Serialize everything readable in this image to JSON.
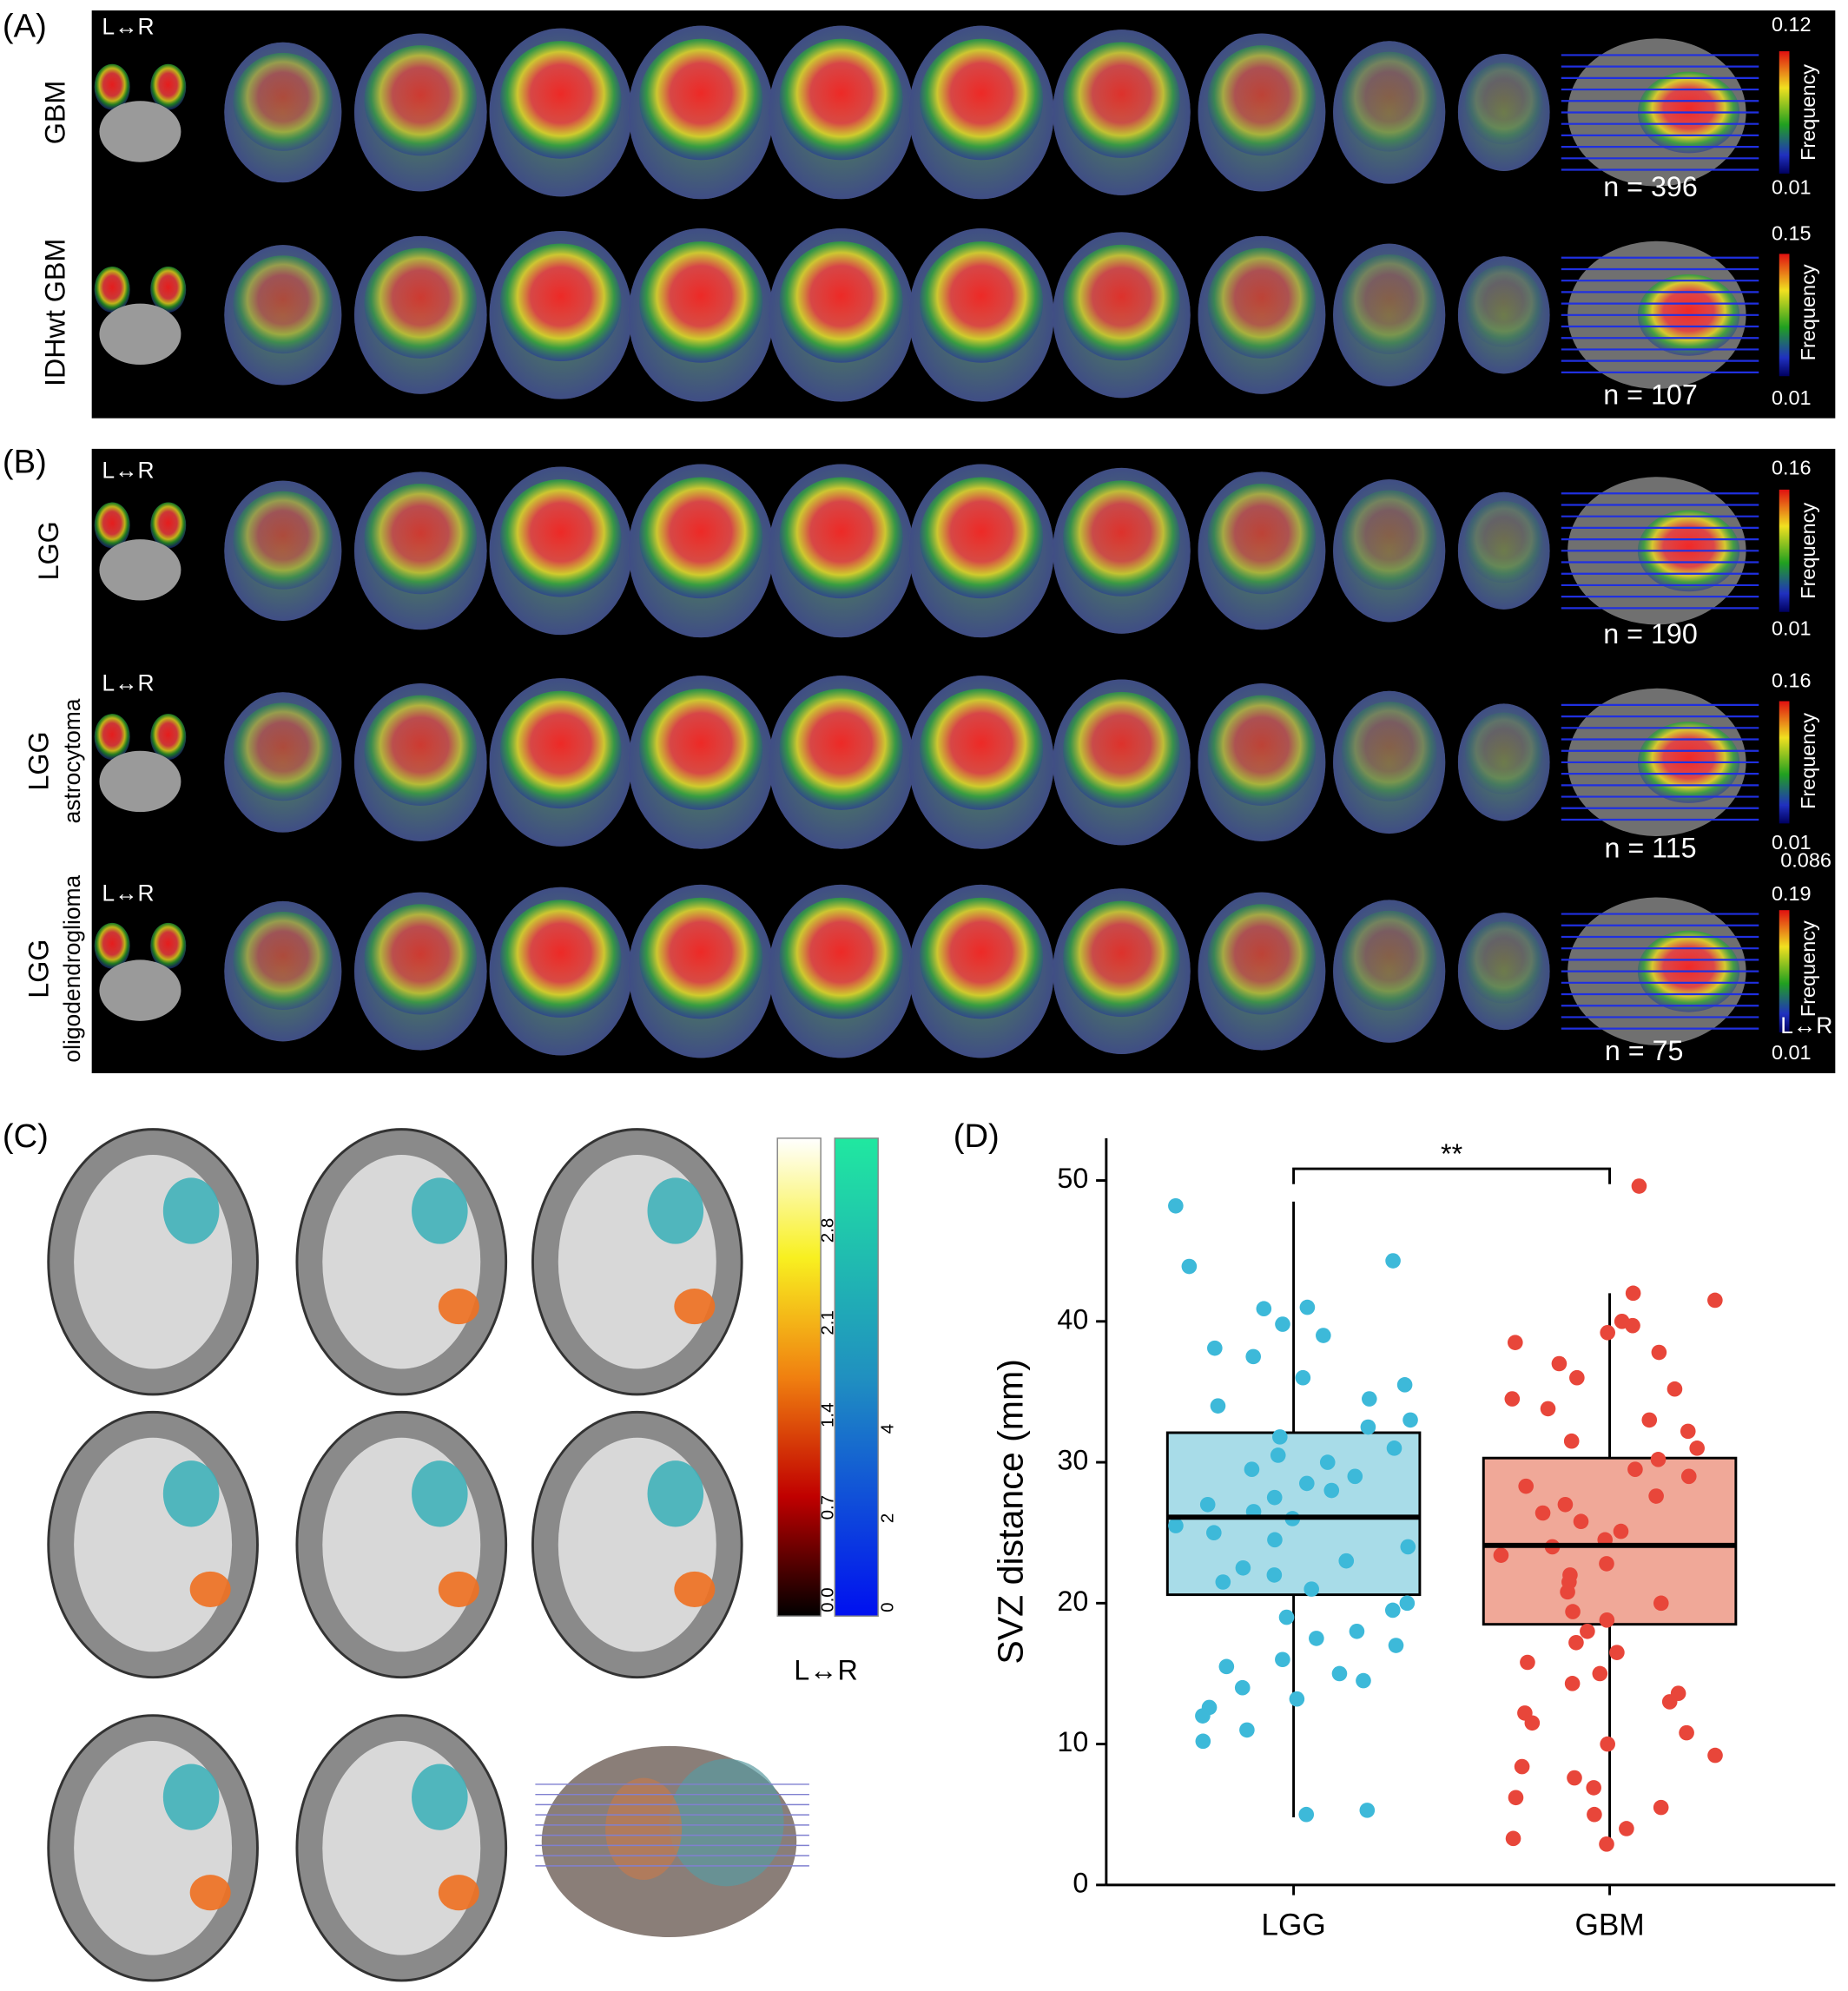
{
  "panel_a": {
    "label": "(A)",
    "orientation": "L↔R",
    "rows": [
      {
        "label": "GBM",
        "scale_max": "0.12",
        "scale_min": "0.01",
        "scale_title": "Frequency",
        "n": "n = 396"
      },
      {
        "label": "IDHwt GBM",
        "scale_max": "0.15",
        "scale_min": "0.01",
        "scale_title": "Frequency",
        "n": "n = 107"
      }
    ]
  },
  "panel_b": {
    "label": "(B)",
    "rows": [
      {
        "label_lines": [
          "LGG"
        ],
        "orientation": "L↔R",
        "scale_max": "0.16",
        "scale_min": "0.01",
        "scale_title": "Frequency",
        "n": "n = 190"
      },
      {
        "label_lines": [
          "LGG",
          "astrocytoma"
        ],
        "orientation": "L↔R",
        "scale_max": "0.16",
        "scale_min": "0.01",
        "scale_title": "Frequency",
        "n": "n = 115",
        "extra": "0.086"
      },
      {
        "label_lines": [
          "LGG",
          "oligodendroglioma"
        ],
        "orientation": "L↔R",
        "scale_max": "0.19",
        "scale_min": "0.01",
        "scale_title": "Frequency",
        "n": "n = 75",
        "extra": "L↔R"
      }
    ]
  },
  "panel_c": {
    "label": "(C)",
    "scale_red_ticks": [
      "0.0",
      "0.7",
      "1.4",
      "2.1",
      "2.8"
    ],
    "scale_blue_ticks": [
      "0",
      "2",
      "4"
    ],
    "orientation": "L↔R"
  },
  "chart_data": {
    "type": "box",
    "panel_label": "(D)",
    "y_label": "SVZ distance (mm)",
    "categories": [
      "LGG",
      "GBM"
    ],
    "ylim": [
      0,
      53
    ],
    "yticks": [
      0,
      10,
      20,
      30,
      40,
      50
    ],
    "significance": "**",
    "series": [
      {
        "color": "#a8dce8",
        "point_color": "#3db9d9",
        "whisker_low": 4.8,
        "q1": 20.6,
        "median": 26.1,
        "q3": 32.1,
        "whisker_high": 48.5,
        "points": [
          48.2,
          44.3,
          43.9,
          41,
          40.9,
          39.8,
          39,
          38.1,
          37.5,
          36,
          35.5,
          34.5,
          34,
          33,
          32.5,
          31.8,
          31,
          30.5,
          30,
          29.5,
          29,
          28.5,
          28,
          27.5,
          27,
          26.5,
          26,
          25.5,
          25,
          24.5,
          24,
          23,
          22.5,
          22,
          21.5,
          21,
          20,
          19.5,
          19,
          18,
          17.5,
          17,
          16,
          15.5,
          15,
          14.5,
          14,
          13.2,
          12.6,
          12,
          11,
          10.2,
          5.3,
          5.0
        ]
      },
      {
        "color": "#f0a898",
        "point_color": "#e8463a",
        "whisker_low": 2.9,
        "q1": 18.5,
        "median": 24.1,
        "q3": 30.3,
        "whisker_high": 42,
        "points": [
          49.6,
          42,
          41.5,
          40,
          39.7,
          39.2,
          38.5,
          37.8,
          37,
          36,
          35.2,
          34.5,
          33.8,
          33,
          32.2,
          31.5,
          31,
          30.2,
          29.5,
          29,
          28.3,
          27.6,
          27,
          26.4,
          25.8,
          25.1,
          24.5,
          24,
          23.4,
          22.8,
          22,
          21.5,
          20.8,
          20,
          19.4,
          18.8,
          18,
          17.2,
          16.5,
          15.8,
          15,
          14.3,
          13.6,
          13,
          12.2,
          11.5,
          10.8,
          10,
          9.2,
          8.4,
          7.6,
          6.9,
          6.2,
          5.5,
          5,
          4,
          3.3,
          2.9
        ]
      }
    ]
  }
}
